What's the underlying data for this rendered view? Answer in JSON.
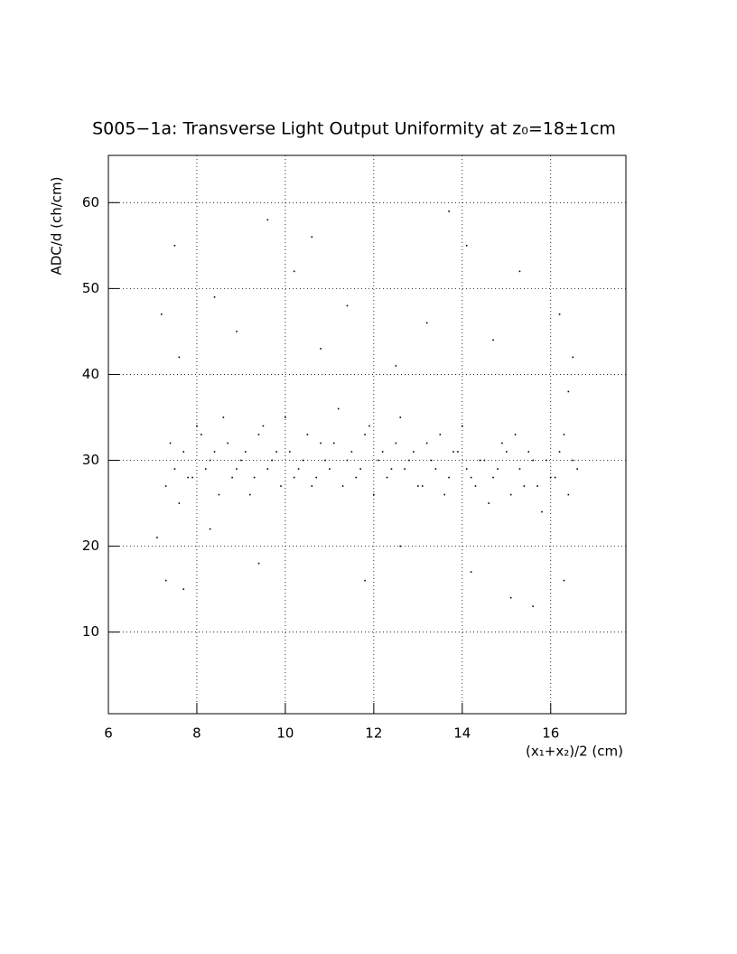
{
  "chart_data": {
    "type": "scatter",
    "title": "S005−1a: Transverse Light Output Uniformity at z₀=18±1cm",
    "x_label": "(x₁+x₂)/2 (cm)",
    "y_label": "ADC/d (ch/cm)",
    "color": "#000000",
    "grid": true,
    "xlim": [
      6,
      17.7
    ],
    "ylim": [
      0.5,
      65.5
    ],
    "xticks": [
      6,
      8,
      10,
      12,
      14,
      16
    ],
    "yticks": [
      10,
      20,
      30,
      40,
      50,
      60
    ],
    "x": [
      7.3,
      7.5,
      7.7,
      7.9,
      8.1,
      8.3,
      8.5,
      8.7,
      8.9,
      9.1,
      9.3,
      9.5,
      9.7,
      9.9,
      10.1,
      10.3,
      10.5,
      10.7,
      10.9,
      11.1,
      11.3,
      11.5,
      11.7,
      11.9,
      12.1,
      12.3,
      12.5,
      12.7,
      12.9,
      13.1,
      13.3,
      13.5,
      13.7,
      13.9,
      14.1,
      14.3,
      14.5,
      14.7,
      14.9,
      15.1,
      15.3,
      15.5,
      15.7,
      15.9,
      16.1,
      16.3,
      16.5,
      7.4,
      7.6,
      7.8,
      8.0,
      8.2,
      8.4,
      8.6,
      8.8,
      9.0,
      9.2,
      9.4,
      9.6,
      9.8,
      10.0,
      10.2,
      10.4,
      10.6,
      10.8,
      11.0,
      11.2,
      11.4,
      11.6,
      11.8,
      12.0,
      12.2,
      12.4,
      12.6,
      12.8,
      13.0,
      13.2,
      13.4,
      13.6,
      13.8,
      14.0,
      14.2,
      14.4,
      14.6,
      14.8,
      15.0,
      15.2,
      15.4,
      15.6,
      15.8,
      16.0,
      16.2,
      16.4,
      16.6,
      7.2,
      7.5,
      7.6,
      8.4,
      8.9,
      9.6,
      10.2,
      10.8,
      11.4,
      12.5,
      13.2,
      14.1,
      14.7,
      15.3,
      16.2,
      16.5,
      7.1,
      7.3,
      7.7,
      8.3,
      9.4,
      11.8,
      12.6,
      14.2,
      15.1,
      15.6,
      16.3,
      10.6,
      13.7,
      16.4
    ],
    "y": [
      27,
      29,
      31,
      28,
      33,
      30,
      26,
      32,
      29,
      31,
      28,
      34,
      30,
      27,
      31,
      29,
      33,
      28,
      30,
      32,
      27,
      31,
      29,
      34,
      30,
      28,
      32,
      29,
      31,
      27,
      30,
      33,
      28,
      31,
      29,
      27,
      30,
      28,
      32,
      26,
      29,
      31,
      27,
      30,
      28,
      33,
      30,
      32,
      25,
      28,
      34,
      29,
      31,
      35,
      28,
      30,
      26,
      33,
      29,
      31,
      35,
      28,
      30,
      27,
      32,
      29,
      36,
      30,
      28,
      33,
      26,
      31,
      29,
      35,
      30,
      27,
      32,
      29,
      26,
      31,
      34,
      28,
      30,
      25,
      29,
      31,
      33,
      27,
      30,
      24,
      28,
      31,
      26,
      29,
      47,
      55,
      42,
      49,
      45,
      58,
      52,
      43,
      48,
      41,
      46,
      55,
      44,
      52,
      47,
      42,
      21,
      16,
      15,
      22,
      18,
      16,
      20,
      17,
      14,
      13,
      16,
      56,
      59,
      38
    ]
  }
}
